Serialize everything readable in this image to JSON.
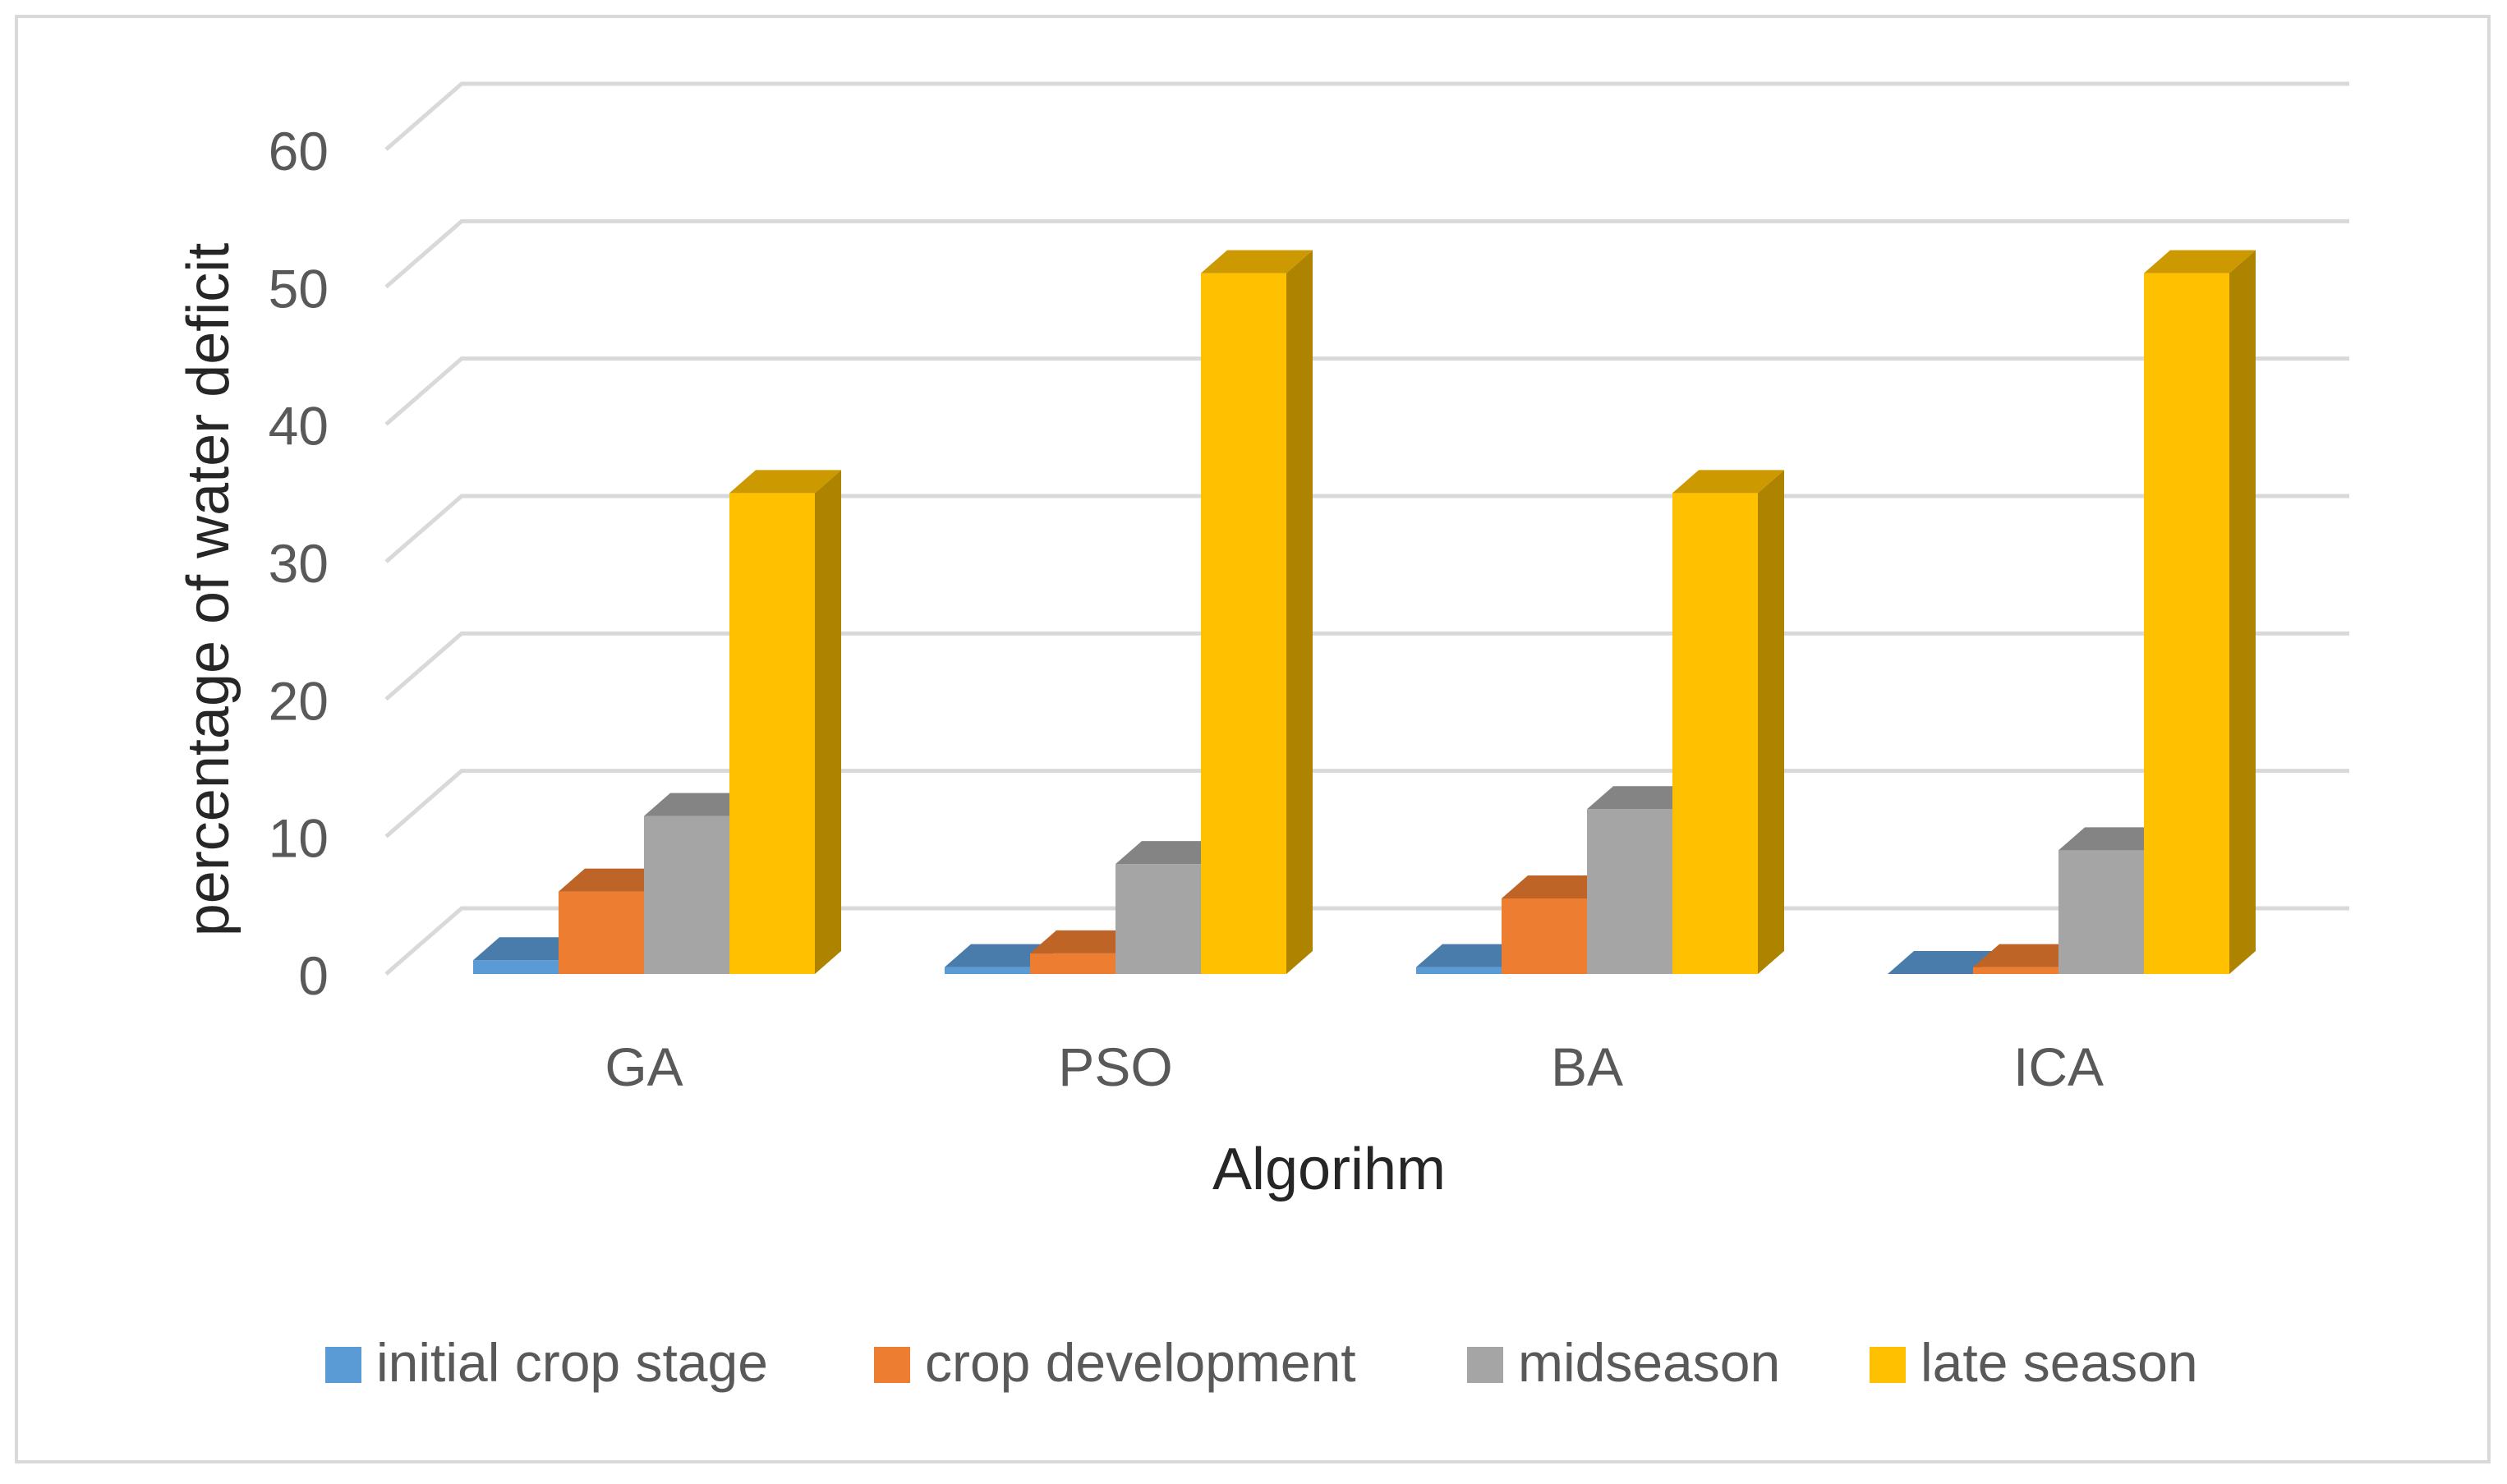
{
  "chart_data": {
    "type": "bar",
    "style": "3d-clustered-column",
    "title": "",
    "xlabel": "Algorihm",
    "ylabel": "percentage of water deficit",
    "categories": [
      "GA",
      "PSO",
      "BA",
      "ICA"
    ],
    "ylim": [
      0,
      60
    ],
    "yticks": [
      0,
      10,
      20,
      30,
      40,
      50,
      60
    ],
    "grid": true,
    "legend_position": "bottom",
    "series": [
      {
        "name": "initial crop stage",
        "color": "#5B9BD5",
        "values": [
          1,
          0.5,
          0.5,
          0
        ]
      },
      {
        "name": "crop development",
        "color": "#ED7D31",
        "values": [
          6,
          1.5,
          5.5,
          0.5
        ]
      },
      {
        "name": "midseason",
        "color": "#A5A5A5",
        "values": [
          11.5,
          8,
          12,
          9
        ]
      },
      {
        "name": "late season",
        "color": "#FFC000",
        "values": [
          35,
          51,
          35,
          51
        ]
      }
    ]
  }
}
